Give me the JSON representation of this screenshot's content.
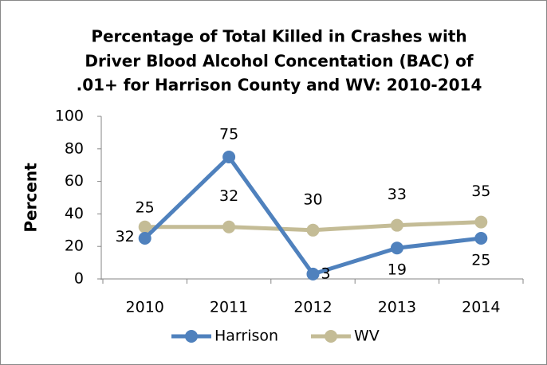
{
  "chart_data": {
    "type": "line",
    "title": [
      "Percentage of Total Killed in Crashes with",
      "Driver Blood Alcohol Concentation (BAC) of",
      ".01+ for Harrison County and WV: 2010-2014"
    ],
    "y_label": "Percent",
    "categories": [
      "2010",
      "2011",
      "2012",
      "2013",
      "2014"
    ],
    "series": [
      {
        "name": "Harrison",
        "color": "#4f81bd",
        "values": [
          25,
          75,
          3,
          19,
          25
        ]
      },
      {
        "name": "WV",
        "color": "#c4bc96",
        "values": [
          32,
          32,
          30,
          33,
          35
        ]
      }
    ],
    "ylim": [
      0,
      100
    ],
    "yticks": [
      0,
      20,
      40,
      60,
      80,
      100
    ],
    "grid": false,
    "legend": "bottom"
  }
}
